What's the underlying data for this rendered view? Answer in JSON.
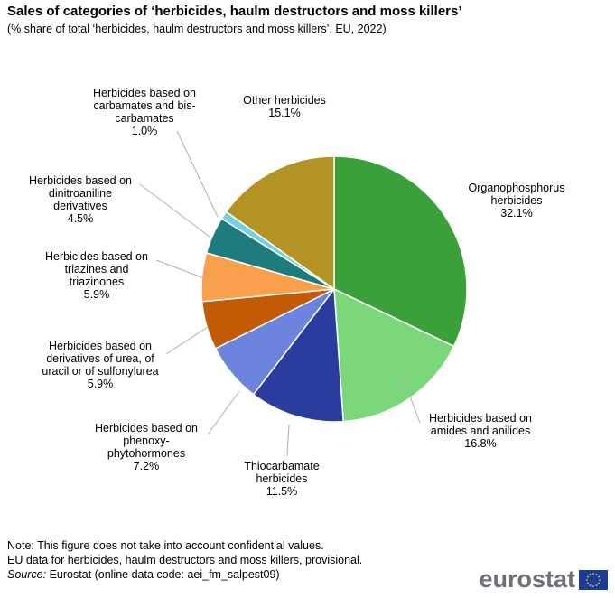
{
  "title": "Sales of categories of ‘herbicides, haulm destructors and moss killers’",
  "subtitle": "(% share of total ‘herbicides, haulm destructors and moss killers’, EU, 2022)",
  "chart_data": {
    "type": "pie",
    "start_angle_deg": 0,
    "direction": "clockwise",
    "slices": [
      {
        "label_lines": [
          "Organophosphorus",
          "herbicides"
        ],
        "value": 32.1,
        "value_label": "32.1%",
        "color": "#3aa13a"
      },
      {
        "label_lines": [
          "Herbicides based on",
          "amides and anilides"
        ],
        "value": 16.8,
        "value_label": "16.8%",
        "color": "#7ad87a"
      },
      {
        "label_lines": [
          "Thiocarbamate",
          "herbicides"
        ],
        "value": 11.5,
        "value_label": "11.5%",
        "color": "#2a3d9f"
      },
      {
        "label_lines": [
          "Herbicides based on",
          "phenoxy-",
          "phytohormones"
        ],
        "value": 7.2,
        "value_label": "7.2%",
        "color": "#6d84df"
      },
      {
        "label_lines": [
          "Herbicides based on",
          "derivatives  of urea,  of",
          "uracil or of sulfonylurea"
        ],
        "value": 5.9,
        "value_label": "5.9%",
        "color": "#c25a06"
      },
      {
        "label_lines": [
          "Herbicides based on",
          "triazines and",
          "triazinones"
        ],
        "value": 5.9,
        "value_label": "5.9%",
        "color": "#f8a04c"
      },
      {
        "label_lines": [
          "Herbicides based on",
          "dinitroaniline",
          "derivatives"
        ],
        "value": 4.5,
        "value_label": "4.5%",
        "color": "#1f7c7c"
      },
      {
        "label_lines": [
          "Herbicides based on",
          "carbamates and bis-",
          "carbamates"
        ],
        "value": 1.0,
        "value_label": "1.0%",
        "color": "#74d3e0"
      },
      {
        "label_lines": [
          "Other herbicides"
        ],
        "value": 15.1,
        "value_label": "15.1%",
        "color": "#b29323"
      }
    ]
  },
  "notes": {
    "line1": "Note: This figure  does not take into account confidential values.",
    "line2": "EU data for herbicides, haulm destructors and moss killers, provisional.",
    "source_label": "Source:",
    "source_text": " Eurostat (online data code: aei_fm_salpest09)"
  },
  "logo": {
    "text": "eurostat",
    "flag_color": "#1a3a9c",
    "star_color": "#f5d000"
  }
}
